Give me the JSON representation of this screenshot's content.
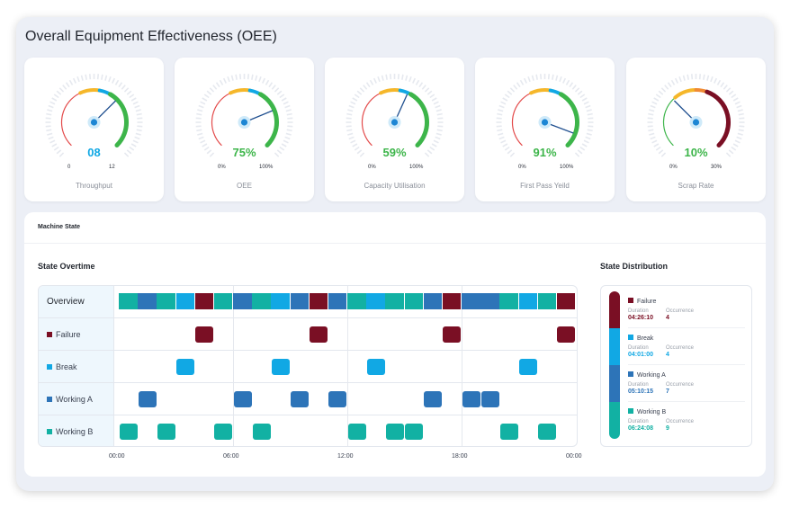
{
  "title": "Overall Equipment Effectiveness (OEE)",
  "colors": {
    "failure": "#7a0f24",
    "break": "#11a8e4",
    "working_a": "#2d74b8",
    "working_b": "#12b1a3",
    "green": "#3db54a",
    "value_blue": "#11a8e4",
    "value_green": "#3db54a"
  },
  "gauges": [
    {
      "label": "Throughput",
      "value": "08",
      "min": "0",
      "max": "12",
      "fraction": 0.667,
      "value_color": "#11a8e4",
      "arc_color": "#3db54a",
      "icon": "gauge-icon"
    },
    {
      "label": "OEE",
      "value": "75%",
      "min": "0%",
      "max": "100%",
      "fraction": 0.75,
      "value_color": "#3db54a",
      "arc_color": "#3db54a",
      "icon": "gauge-icon"
    },
    {
      "label": "Capacity Utilisation",
      "value": "59%",
      "min": "0%",
      "max": "100%",
      "fraction": 0.59,
      "value_color": "#3db54a",
      "arc_color": "#3db54a",
      "icon": "gauge-icon"
    },
    {
      "label": "First Pass Yeild",
      "value": "91%",
      "min": "0%",
      "max": "100%",
      "fraction": 0.91,
      "value_color": "#3db54a",
      "arc_color": "#3db54a",
      "icon": "gauge-icon"
    },
    {
      "label": "Scrap Rate",
      "value": "10%",
      "min": "0%",
      "max": "30%",
      "fraction": 0.333,
      "value_color": "#3db54a",
      "arc_color": "#7a0f24",
      "icon": "gauge-icon"
    }
  ],
  "machine_state": {
    "header": "Machine State",
    "overtime_title": "State Overtime",
    "distribution_title": "State Distribution",
    "rows": [
      {
        "key": "overview",
        "label": "Overview"
      },
      {
        "key": "failure",
        "label": "Failure"
      },
      {
        "key": "break",
        "label": "Break"
      },
      {
        "key": "working_a",
        "label": "Working A"
      },
      {
        "key": "working_b",
        "label": "Working B"
      }
    ],
    "time_labels": [
      "00:00",
      "06:00",
      "12:00",
      "18:00",
      "00:00"
    ],
    "overview_sequence": [
      "working_b",
      "working_a",
      "working_b",
      "break",
      "failure",
      "working_b",
      "working_a",
      "working_b",
      "break",
      "working_a",
      "failure",
      "working_a",
      "working_b",
      "break",
      "working_b",
      "working_b",
      "working_a",
      "failure",
      "working_a",
      "working_a",
      "working_b",
      "break",
      "working_b",
      "failure"
    ],
    "events": {
      "failure": [
        4.5,
        10.5,
        17.5,
        23.5
      ],
      "break": [
        3.5,
        8.5,
        13.5,
        21.5
      ],
      "working_a": [
        1.5,
        6.5,
        9.5,
        11.5,
        16.5,
        18.5,
        19.5
      ],
      "working_b": [
        0.5,
        2.5,
        5.5,
        7.5,
        12.5,
        14.5,
        15.5,
        20.5,
        22.5
      ]
    },
    "distribution": {
      "duration_label": "Duration",
      "occurrence_label": "Occurrence",
      "items": [
        {
          "key": "failure",
          "name": "Failure",
          "duration": "04:26:10",
          "occurrence": "4"
        },
        {
          "key": "break",
          "name": "Break",
          "duration": "04:01:00",
          "occurrence": "4"
        },
        {
          "key": "working_a",
          "name": "Working A",
          "duration": "05:10:15",
          "occurrence": "7"
        },
        {
          "key": "working_b",
          "name": "Working B",
          "duration": "06:24:08",
          "occurrence": "9"
        }
      ]
    }
  }
}
